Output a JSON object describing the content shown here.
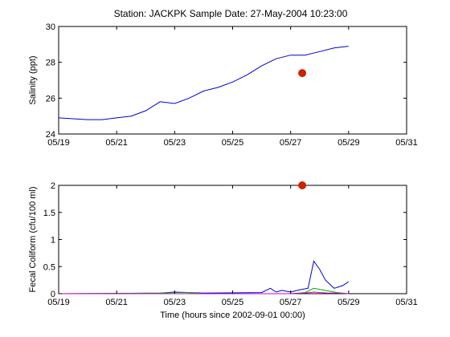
{
  "title": "Station: JACKPK  Sample Date: 27-May-2004 10:23:00",
  "x_tick_labels": [
    "05/19",
    "05/21",
    "05/23",
    "05/25",
    "05/27",
    "05/29",
    "05/31"
  ],
  "colors": {
    "model_line": "#0000cc",
    "secondary_line": "#00aa00",
    "tertiary_line": "#cc00cc",
    "sample_marker": "#cc2200"
  },
  "chart_data": [
    {
      "type": "line",
      "ylabel": "Salinity (ppt)",
      "xlim": [
        "05/19",
        "05/31"
      ],
      "ylim": [
        24,
        30
      ],
      "yticks": [
        24,
        26,
        28,
        30
      ],
      "series": [
        {
          "x": [
            19.0,
            19.5,
            20.0,
            20.5,
            21.0,
            21.5,
            22.0,
            22.5,
            23.0,
            23.5,
            24.0,
            24.5,
            25.0,
            25.5,
            26.0,
            26.5,
            27.0,
            27.5,
            28.0,
            28.5,
            29.0
          ],
          "y": [
            24.9,
            24.85,
            24.8,
            24.8,
            24.9,
            25.0,
            25.3,
            25.8,
            25.7,
            26.0,
            26.4,
            26.6,
            26.9,
            27.3,
            27.8,
            28.2,
            28.4,
            28.4,
            28.6,
            28.8,
            28.9
          ]
        }
      ],
      "observation": {
        "x": 27.4,
        "y": 27.4
      }
    },
    {
      "type": "line",
      "ylabel": "Fecal Coliform (cfu/100 ml)",
      "xlabel": "Time (hours since 2002-09-01 00:00)",
      "xlim": [
        "05/19",
        "05/31"
      ],
      "ylim": [
        0,
        2
      ],
      "yticks": [
        0,
        0.5,
        1,
        1.5,
        2
      ],
      "ytick_labels": [
        "0",
        "0.5",
        "1",
        "1.5",
        "2"
      ],
      "series": [
        {
          "x": [
            19.0,
            22.5,
            23.0,
            23.5,
            24.0,
            26.0,
            26.3,
            26.5,
            26.7,
            27.0,
            27.3,
            27.6,
            27.8,
            28.0,
            28.2,
            28.5,
            28.8,
            29.0
          ],
          "y": [
            0.0,
            0.01,
            0.03,
            0.02,
            0.01,
            0.02,
            0.1,
            0.03,
            0.06,
            0.03,
            0.07,
            0.1,
            0.6,
            0.45,
            0.25,
            0.1,
            0.15,
            0.22
          ]
        },
        {
          "x": [
            19.0,
            22.5,
            23.0,
            23.5,
            24.0,
            27.0,
            27.5,
            27.8,
            28.0,
            28.3,
            28.6,
            29.0
          ],
          "y": [
            0.0,
            0.01,
            0.02,
            0.02,
            0.0,
            0.0,
            0.02,
            0.1,
            0.08,
            0.05,
            0.02,
            0.0
          ]
        },
        {
          "x": [
            19.0,
            27.0,
            27.5,
            27.8,
            28.0,
            28.3,
            28.6,
            29.0
          ],
          "y": [
            0.0,
            0.0,
            0.01,
            0.03,
            0.02,
            0.01,
            0.01,
            0.0
          ]
        }
      ],
      "observation": {
        "x": 27.4,
        "y": 2.0
      }
    }
  ]
}
